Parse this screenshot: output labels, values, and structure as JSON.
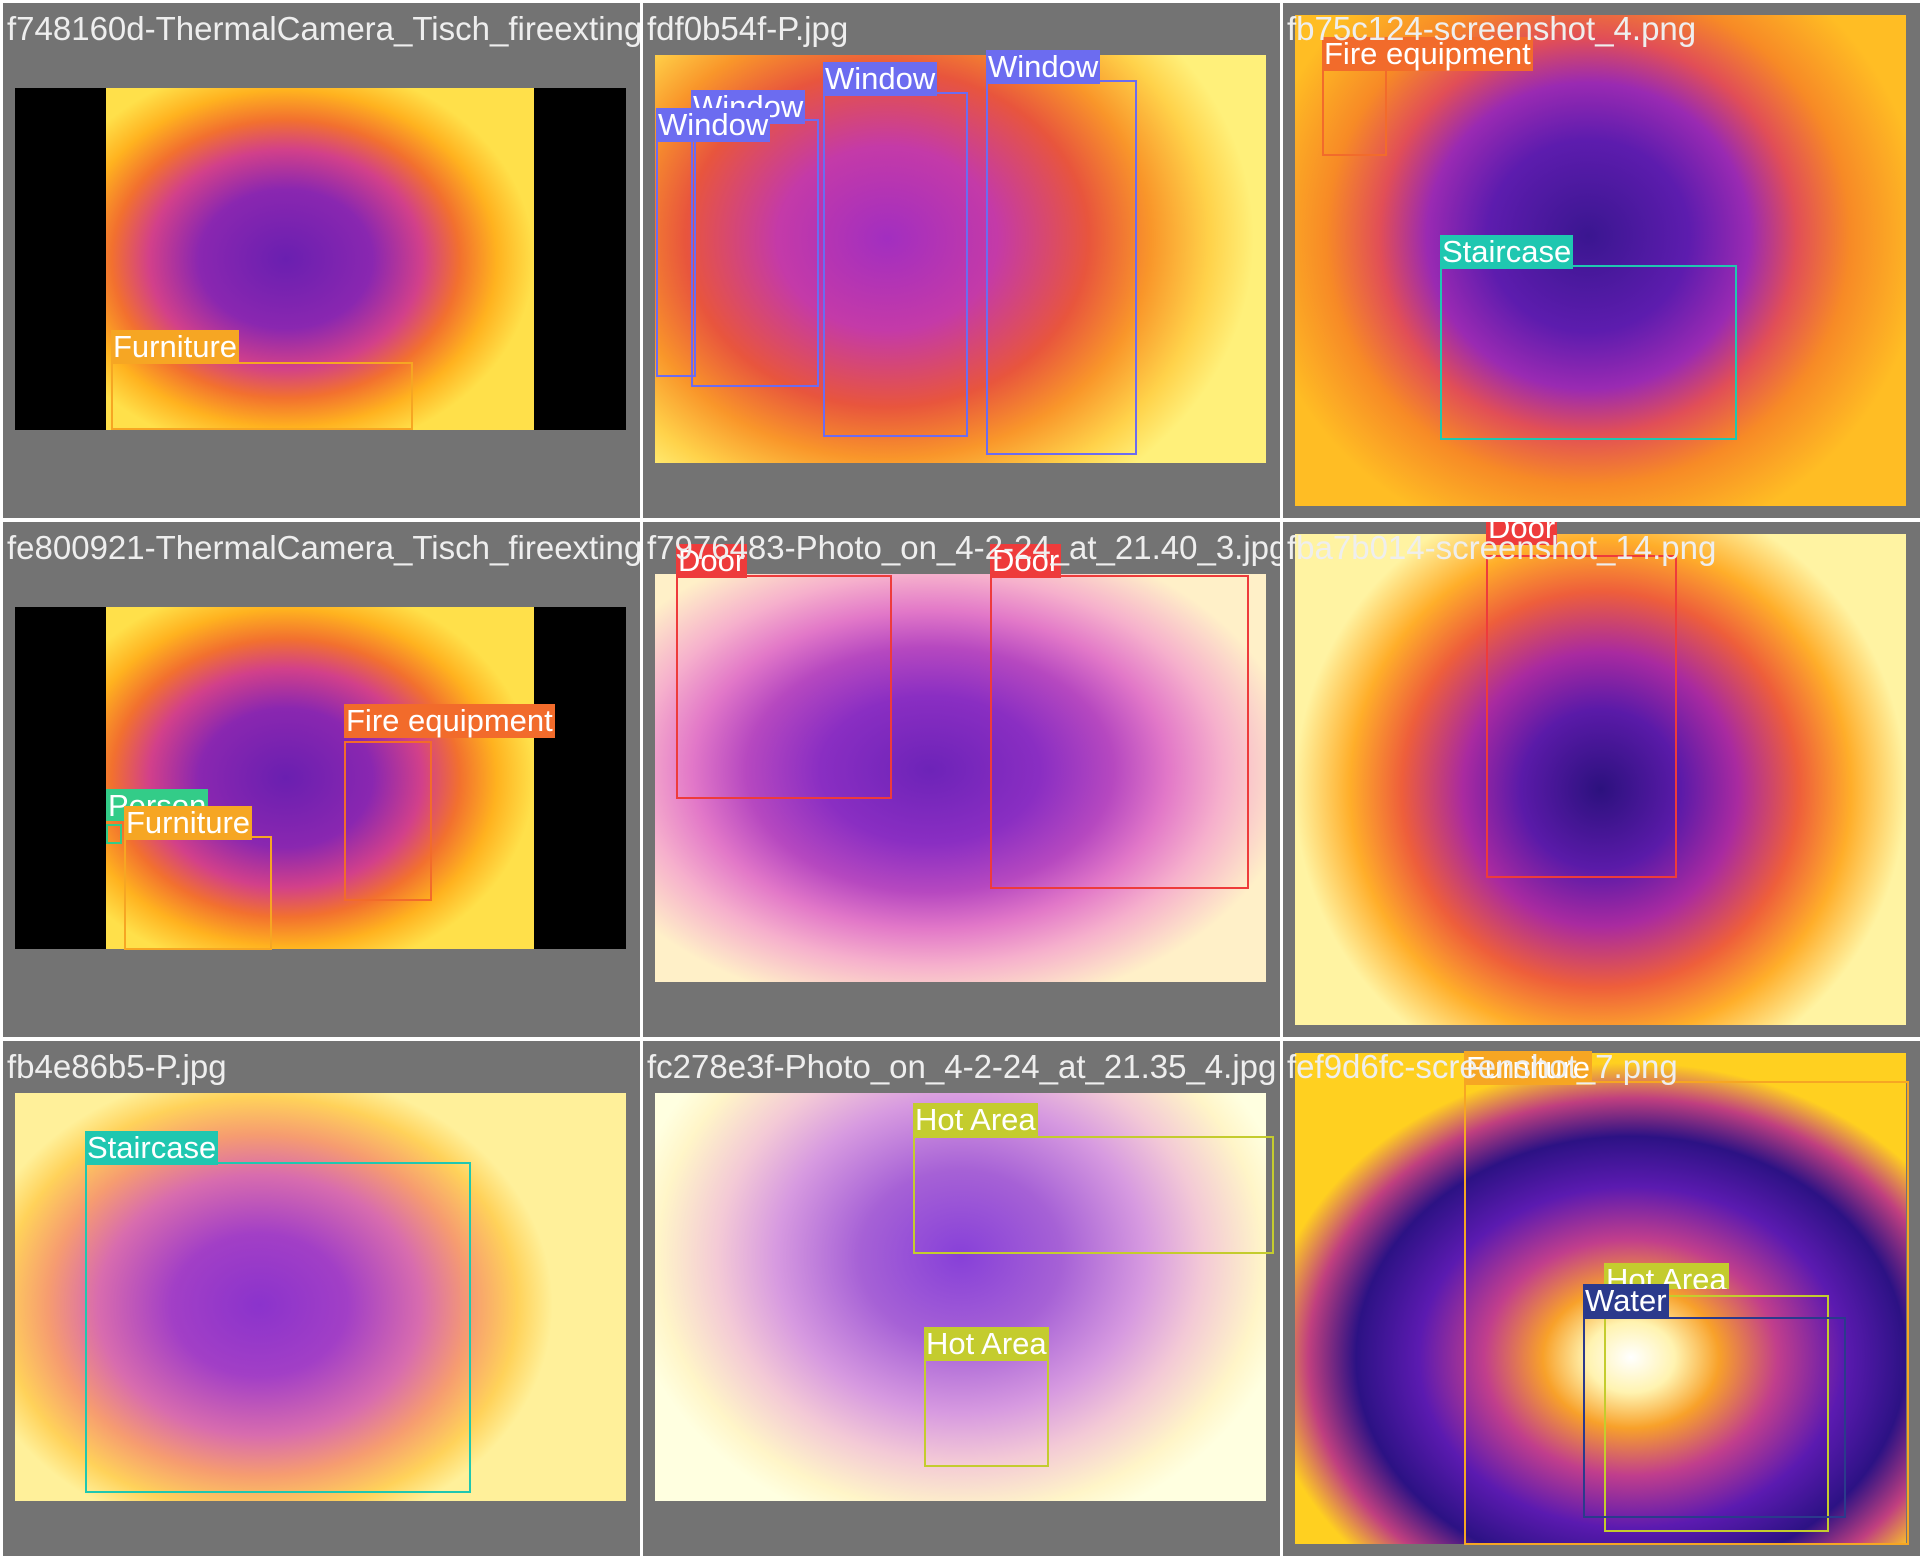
{
  "tiles": [
    {
      "filename": "f748160d-ThermalCamera_Tisch_fireexting",
      "labels": [
        "Furniture"
      ]
    },
    {
      "filename": "fdf0b54f-P.jpg",
      "labels": [
        "Window",
        "Window",
        "Window",
        "Window"
      ]
    },
    {
      "filename": "fb75c124-screenshot_4.png",
      "labels": [
        "Fire equipment",
        "Staircase"
      ]
    },
    {
      "filename": "fe800921-ThermalCamera_Tisch_fireexting",
      "labels": [
        "Fire equipment",
        "Person",
        "Furniture"
      ]
    },
    {
      "filename": "f7976483-Photo_on_4-2-24_at_21.40_3.jpg",
      "labels": [
        "Door",
        "Door"
      ]
    },
    {
      "filename": "fba7b014-screenshot_14.png",
      "labels": [
        "Door"
      ]
    },
    {
      "filename": "fb4e86b5-P.jpg",
      "labels": [
        "Staircase"
      ]
    },
    {
      "filename": "fc278e3f-Photo_on_4-2-24_at_21.35_4.jpg",
      "labels": [
        "Hot Area",
        "Hot Area"
      ]
    },
    {
      "filename": "fef9d6fc-screenshot_7.png",
      "labels": [
        "Furniture",
        "Hot Area",
        "Water"
      ]
    }
  ],
  "class_colors": {
    "Furniture": "#f6a623",
    "Window": "#6c6cf0",
    "Fire equipment": "#f26b2b",
    "Staircase": "#1fc7b0",
    "Person": "#33cc88",
    "Door": "#ee3b3b",
    "Hot Area": "#c4cc2e",
    "Water": "#2b3a8c"
  }
}
